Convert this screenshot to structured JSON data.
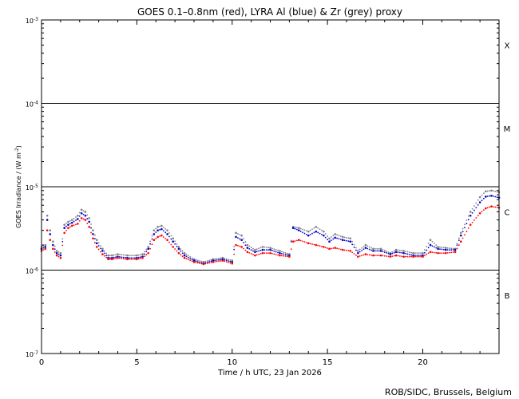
{
  "chart_data": {
    "type": "scatter",
    "title": "GOES 0.1–0.8nm (red), LYRA Al (blue) & Zr (grey) proxy",
    "xlabel": "Time / h UTC, 23 Jan 2026",
    "ylabel_base": "GOES Irradiance / (W m",
    "ylabel_sup": "-2",
    "ylabel_end": ")",
    "credit": "ROB/SIDC, Brussels, Belgium",
    "x_scale": "linear",
    "y_scale": "log",
    "xlim": [
      0,
      24
    ],
    "ylim": [
      1e-07,
      0.001
    ],
    "x_ticks": [
      0,
      5,
      10,
      15,
      20
    ],
    "y_ticks": [
      {
        "value": 1e-07,
        "base": "10",
        "exp": "-7"
      },
      {
        "value": 1e-06,
        "base": "10",
        "exp": "-6"
      },
      {
        "value": 1e-05,
        "base": "10",
        "exp": "-5"
      },
      {
        "value": 0.0001,
        "base": "10",
        "exp": "-4"
      },
      {
        "value": 0.001,
        "base": "10",
        "exp": "-3"
      }
    ],
    "class_lines": [
      1e-06,
      1e-05,
      0.0001
    ],
    "class_labels": [
      {
        "label": "B",
        "value": 5e-07
      },
      {
        "label": "C",
        "value": 5e-06
      },
      {
        "label": "M",
        "value": 5e-05
      },
      {
        "label": "X",
        "value": 0.0005
      }
    ],
    "series": [
      {
        "color": "#808080",
        "x": [
          0.0,
          0.2,
          0.3,
          0.45,
          0.6,
          0.8,
          1.0,
          1.2,
          1.4,
          1.6,
          1.9,
          2.1,
          2.3,
          2.5,
          2.7,
          2.9,
          3.2,
          3.5,
          3.7,
          4.0,
          4.5,
          5.0,
          5.3,
          5.6,
          5.9,
          6.1,
          6.3,
          6.6,
          6.9,
          7.2,
          7.5,
          8.0,
          8.5,
          9.0,
          9.5,
          10.0,
          10.2,
          10.5,
          10.8,
          11.2,
          11.6,
          12.0,
          12.5,
          13.0,
          13.2,
          13.5,
          14.0,
          14.4,
          14.8,
          15.1,
          15.4,
          15.8,
          16.2,
          16.6,
          17.0,
          17.4,
          17.8,
          18.3,
          18.6,
          19.0,
          19.5,
          20.0,
          20.4,
          20.8,
          21.2,
          21.7,
          22.0,
          22.5,
          23.0,
          23.3,
          23.6,
          24.0
        ],
        "y": [
          1.9e-06,
          2e-06,
          4.5e-06,
          3e-06,
          2.2e-06,
          1.7e-06,
          1.6e-06,
          3.5e-06,
          3.8e-06,
          4e-06,
          4.5e-06,
          5.3e-06,
          5e-06,
          4.2e-06,
          3e-06,
          2.3e-06,
          1.8e-06,
          1.5e-06,
          1.5e-06,
          1.55e-06,
          1.5e-06,
          1.5e-06,
          1.55e-06,
          1.9e-06,
          3e-06,
          3.3e-06,
          3.4e-06,
          3e-06,
          2.4e-06,
          1.9e-06,
          1.6e-06,
          1.35e-06,
          1.25e-06,
          1.35e-06,
          1.4e-06,
          1.3e-06,
          2.8e-06,
          2.6e-06,
          2e-06,
          1.75e-06,
          1.9e-06,
          1.85e-06,
          1.7e-06,
          1.55e-06,
          3.3e-06,
          3.2e-06,
          2.9e-06,
          3.3e-06,
          2.9e-06,
          2.4e-06,
          2.7e-06,
          2.5e-06,
          2.4e-06,
          1.7e-06,
          2e-06,
          1.8e-06,
          1.8e-06,
          1.6e-06,
          1.75e-06,
          1.7e-06,
          1.6e-06,
          1.6e-06,
          2.3e-06,
          1.9e-06,
          1.85e-06,
          1.8e-06,
          2.8e-06,
          5e-06,
          7.5e-06,
          8.8e-06,
          9e-06,
          8.6e-06
        ]
      },
      {
        "color": "#0000cc",
        "x": [
          0.0,
          0.2,
          0.3,
          0.45,
          0.6,
          0.8,
          1.0,
          1.2,
          1.4,
          1.6,
          1.9,
          2.1,
          2.3,
          2.5,
          2.7,
          2.9,
          3.2,
          3.5,
          3.7,
          4.0,
          4.5,
          5.0,
          5.3,
          5.6,
          5.9,
          6.1,
          6.3,
          6.6,
          6.9,
          7.2,
          7.5,
          8.0,
          8.5,
          9.0,
          9.5,
          10.0,
          10.2,
          10.5,
          10.8,
          11.2,
          11.6,
          12.0,
          12.5,
          13.0,
          13.2,
          13.5,
          14.0,
          14.4,
          14.8,
          15.1,
          15.4,
          15.8,
          16.2,
          16.6,
          17.0,
          17.4,
          17.8,
          18.3,
          18.6,
          19.0,
          19.5,
          20.0,
          20.4,
          20.8,
          21.2,
          21.7,
          22.0,
          22.5,
          23.0,
          23.3,
          23.6,
          24.0
        ],
        "y": [
          1.8e-06,
          1.9e-06,
          4e-06,
          2.7e-06,
          2e-06,
          1.6e-06,
          1.5e-06,
          3.2e-06,
          3.5e-06,
          3.7e-06,
          4.1e-06,
          4.8e-06,
          4.5e-06,
          3.8e-06,
          2.7e-06,
          2.1e-06,
          1.7e-06,
          1.4e-06,
          1.4e-06,
          1.45e-06,
          1.4e-06,
          1.4e-06,
          1.45e-06,
          1.8e-06,
          2.7e-06,
          3e-06,
          3.1e-06,
          2.7e-06,
          2.2e-06,
          1.8e-06,
          1.5e-06,
          1.3e-06,
          1.2e-06,
          1.3e-06,
          1.35e-06,
          1.25e-06,
          2.5e-06,
          2.3e-06,
          1.85e-06,
          1.65e-06,
          1.75e-06,
          1.75e-06,
          1.6e-06,
          1.5e-06,
          3.2e-06,
          3e-06,
          2.6e-06,
          2.9e-06,
          2.6e-06,
          2.2e-06,
          2.45e-06,
          2.3e-06,
          2.2e-06,
          1.6e-06,
          1.85e-06,
          1.7e-06,
          1.7e-06,
          1.55e-06,
          1.65e-06,
          1.6e-06,
          1.5e-06,
          1.5e-06,
          2e-06,
          1.8e-06,
          1.75e-06,
          1.75e-06,
          2.6e-06,
          4.5e-06,
          6.5e-06,
          7.6e-06,
          7.8e-06,
          7.4e-06
        ]
      },
      {
        "color": "#ff0000",
        "x": [
          0.0,
          0.2,
          0.3,
          0.45,
          0.6,
          0.8,
          1.0,
          1.2,
          1.4,
          1.6,
          1.9,
          2.1,
          2.3,
          2.5,
          2.7,
          2.9,
          3.2,
          3.5,
          3.7,
          4.0,
          4.5,
          5.0,
          5.3,
          5.6,
          5.9,
          6.1,
          6.3,
          6.6,
          6.9,
          7.2,
          7.5,
          8.0,
          8.5,
          9.0,
          9.5,
          10.0,
          10.2,
          10.5,
          10.8,
          11.2,
          11.6,
          12.0,
          12.5,
          13.0,
          13.2,
          13.5,
          14.0,
          14.4,
          14.8,
          15.1,
          15.4,
          15.8,
          16.2,
          16.6,
          17.0,
          17.4,
          17.8,
          18.3,
          18.6,
          19.0,
          19.5,
          20.0,
          20.4,
          20.8,
          21.2,
          21.7,
          22.0,
          22.5,
          23.0,
          23.3,
          23.6,
          24.0
        ],
        "y": [
          1.7e-06,
          1.8e-06,
          3e-06,
          2.3e-06,
          1.8e-06,
          1.5e-06,
          1.4e-06,
          2.8e-06,
          3.2e-06,
          3.4e-06,
          3.6e-06,
          4.2e-06,
          4e-06,
          3.3e-06,
          2.4e-06,
          1.9e-06,
          1.55e-06,
          1.35e-06,
          1.35e-06,
          1.4e-06,
          1.35e-06,
          1.35e-06,
          1.4e-06,
          1.6e-06,
          2.3e-06,
          2.5e-06,
          2.6e-06,
          2.3e-06,
          1.9e-06,
          1.6e-06,
          1.4e-06,
          1.25e-06,
          1.18e-06,
          1.25e-06,
          1.3e-06,
          1.2e-06,
          2e-06,
          1.9e-06,
          1.65e-06,
          1.5e-06,
          1.6e-06,
          1.6e-06,
          1.5e-06,
          1.45e-06,
          2.2e-06,
          2.3e-06,
          2.1e-06,
          2e-06,
          1.9e-06,
          1.8e-06,
          1.85e-06,
          1.75e-06,
          1.7e-06,
          1.45e-06,
          1.55e-06,
          1.5e-06,
          1.5e-06,
          1.45e-06,
          1.5e-06,
          1.45e-06,
          1.45e-06,
          1.45e-06,
          1.65e-06,
          1.6e-06,
          1.6e-06,
          1.65e-06,
          2.2e-06,
          3.5e-06,
          4.8e-06,
          5.5e-06,
          5.8e-06,
          5.6e-06
        ]
      }
    ]
  }
}
